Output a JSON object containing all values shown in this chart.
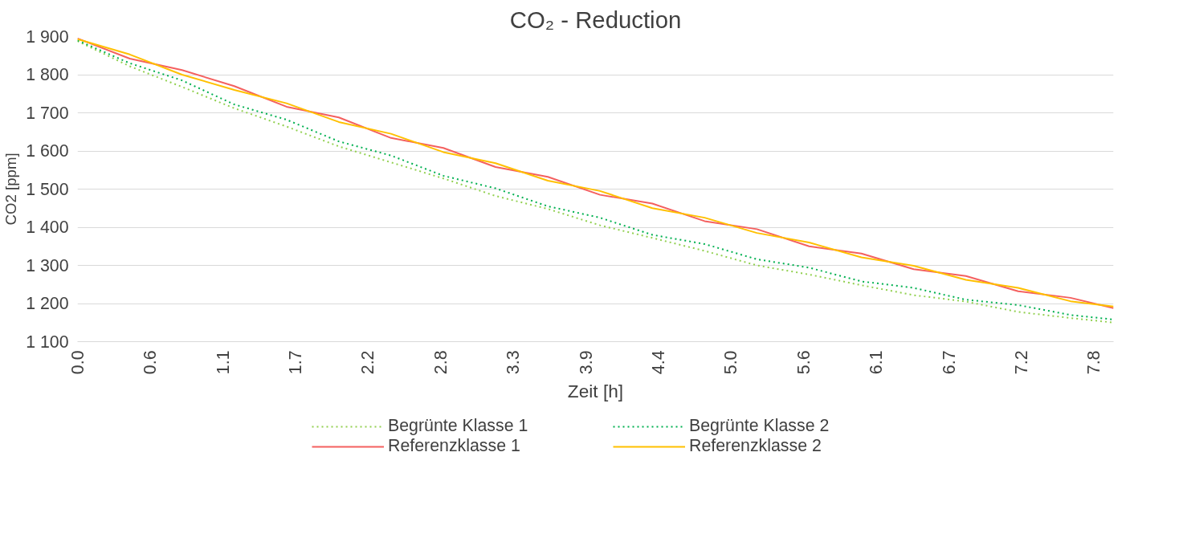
{
  "chart_data": {
    "type": "line",
    "title": "CO₂ - Reduction",
    "xlabel": "Zeit [h]",
    "ylabel": "CO2 [ppm]",
    "x": [
      0,
      0.4,
      0.8,
      1.2,
      1.6,
      2.0,
      2.4,
      2.8,
      3.2,
      3.6,
      4.0,
      4.4,
      4.8,
      5.2,
      5.6,
      6.0,
      6.4,
      6.8,
      7.2,
      7.6,
      7.93
    ],
    "series": [
      {
        "name": "Begrünte Klasse 1",
        "color": "#92d050",
        "line_style": "dotted",
        "values": [
          1888,
          1822,
          1768,
          1712,
          1664,
          1612,
          1570,
          1528,
          1482,
          1448,
          1405,
          1372,
          1338,
          1300,
          1276,
          1248,
          1222,
          1205,
          1178,
          1162,
          1150
        ]
      },
      {
        "name": "Begrünte Klasse 2",
        "color": "#00b050",
        "line_style": "dotted",
        "values": [
          1890,
          1830,
          1785,
          1722,
          1682,
          1625,
          1588,
          1535,
          1502,
          1455,
          1425,
          1380,
          1356,
          1316,
          1294,
          1258,
          1241,
          1210,
          1196,
          1170,
          1158
        ]
      },
      {
        "name": "Referenzklasse 1",
        "color": "#f4605f",
        "line_style": "solid",
        "values": [
          1895,
          1842,
          1812,
          1770,
          1716,
          1688,
          1634,
          1608,
          1558,
          1532,
          1485,
          1462,
          1416,
          1395,
          1350,
          1331,
          1290,
          1272,
          1232,
          1215,
          1188
        ]
      },
      {
        "name": "Referenzklasse 2",
        "color": "#ffc000",
        "line_style": "solid",
        "values": [
          1893,
          1853,
          1800,
          1760,
          1725,
          1676,
          1645,
          1597,
          1568,
          1522,
          1495,
          1450,
          1425,
          1385,
          1360,
          1321,
          1299,
          1262,
          1241,
          1206,
          1192
        ]
      }
    ],
    "xlim": [
      0,
      7.93
    ],
    "xticks": [
      {
        "value": 0,
        "label": "0.0"
      },
      {
        "value": 0.556,
        "label": "0.6"
      },
      {
        "value": 1.111,
        "label": "1.1"
      },
      {
        "value": 1.667,
        "label": "1.7"
      },
      {
        "value": 2.222,
        "label": "2.2"
      },
      {
        "value": 2.778,
        "label": "2.8"
      },
      {
        "value": 3.333,
        "label": "3.3"
      },
      {
        "value": 3.889,
        "label": "3.9"
      },
      {
        "value": 4.444,
        "label": "4.4"
      },
      {
        "value": 5.0,
        "label": "5.0"
      },
      {
        "value": 5.556,
        "label": "5.6"
      },
      {
        "value": 6.111,
        "label": "6.1"
      },
      {
        "value": 6.667,
        "label": "6.7"
      },
      {
        "value": 7.222,
        "label": "7.2"
      },
      {
        "value": 7.778,
        "label": "7.8"
      }
    ],
    "ylim": [
      1100,
      1900
    ],
    "yticks": [
      {
        "value": 1100,
        "label": "1 100"
      },
      {
        "value": 1200,
        "label": "1 200"
      },
      {
        "value": 1300,
        "label": "1 300"
      },
      {
        "value": 1400,
        "label": "1 400"
      },
      {
        "value": 1500,
        "label": "1 500"
      },
      {
        "value": 1600,
        "label": "1 600"
      },
      {
        "value": 1700,
        "label": "1 700"
      },
      {
        "value": 1800,
        "label": "1 800"
      },
      {
        "value": 1900,
        "label": "1 900"
      }
    ],
    "grid": "y",
    "legend": "bottom"
  }
}
